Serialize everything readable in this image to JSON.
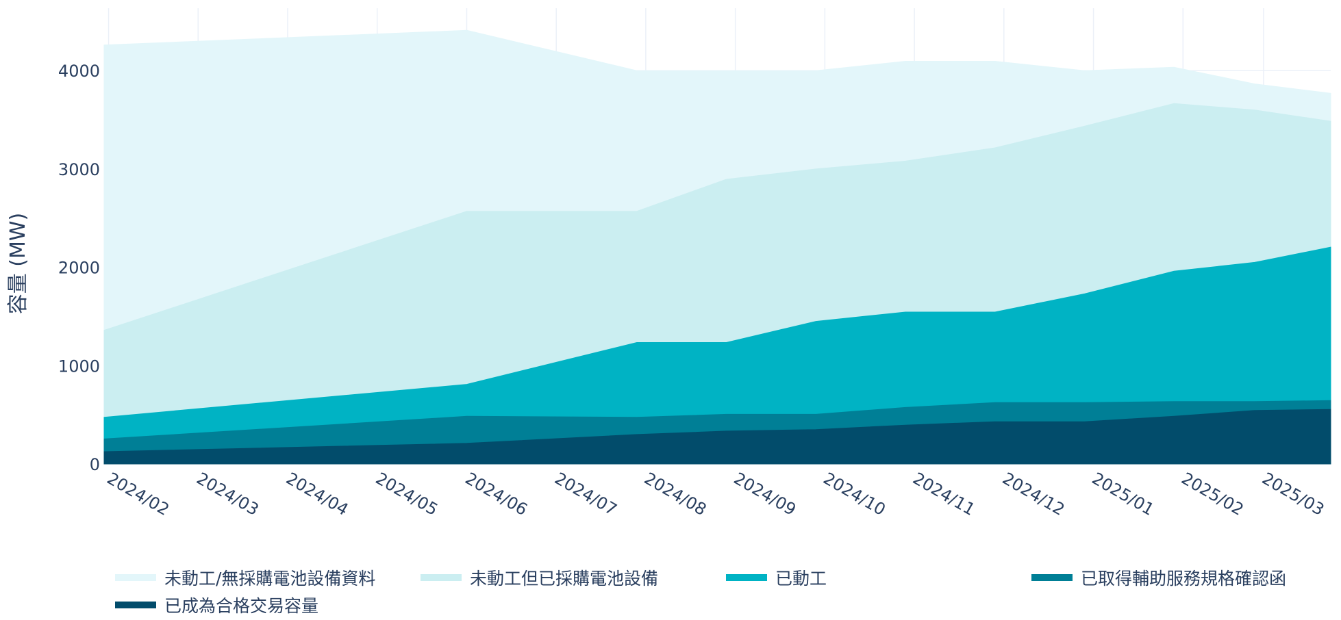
{
  "chart_data": {
    "type": "area",
    "stacked": true,
    "title": "",
    "xlabel": "",
    "ylabel": "容量 (MW)",
    "ylim": [
      0,
      4650
    ],
    "yticks": [
      0,
      1000,
      2000,
      3000,
      4000
    ],
    "grid": true,
    "legend_position": "bottom",
    "x_tick_labels": [
      "2024/02",
      "2024/03",
      "2024/04",
      "2024/05",
      "2024/06",
      "2024/07",
      "2024/08",
      "2024/09",
      "2024/10",
      "2024/11",
      "2024/12",
      "2025/01",
      "2025/02",
      "2025/03"
    ],
    "x": [
      "2024/02",
      "2024/06",
      "2024/08",
      "2024/09",
      "2024/10",
      "2024/11",
      "2024/12",
      "2025/01",
      "2025/02",
      "2025/03",
      "2025/04"
    ],
    "x_pos": [
      0,
      4.05,
      5.95,
      6.95,
      7.95,
      8.95,
      9.95,
      10.95,
      11.95,
      12.85,
      13.7
    ],
    "series": [
      {
        "name": "已成為合格交易容量",
        "color": "#024c6b",
        "values": [
          125,
          210,
          300,
          335,
          350,
          395,
          430,
          430,
          485,
          545,
          555
        ]
      },
      {
        "name": "已取得輔助服務規格確認函",
        "color": "#007f96",
        "values": [
          130,
          275,
          175,
          170,
          155,
          180,
          195,
          195,
          150,
          90,
          90
        ]
      },
      {
        "name": "已動工",
        "color": "#00b3c4",
        "values": [
          220,
          325,
          760,
          730,
          945,
          970,
          920,
          1105,
          1325,
          1415,
          1560
        ]
      },
      {
        "name": "未動工但已採購電池設備",
        "color": "#cbeef1",
        "values": [
          885,
          1760,
          1335,
          1660,
          1550,
          1535,
          1670,
          1705,
          1705,
          1550,
          1280
        ]
      },
      {
        "name": "未動工/無採購電池設備資料",
        "color": "#e3f6fa",
        "values": [
          2900,
          1840,
          1430,
          1105,
          1000,
          1015,
          880,
          565,
          370,
          265,
          285
        ]
      }
    ]
  },
  "legend": {
    "items": [
      {
        "label": "未動工/無採購電池設備資料",
        "color": "#e3f6fa"
      },
      {
        "label": "未動工但已採購電池設備",
        "color": "#cbeef1"
      },
      {
        "label": "已動工",
        "color": "#00b3c4"
      },
      {
        "label": "已取得輔助服務規格確認函",
        "color": "#007f96"
      },
      {
        "label": "已成為合格交易容量",
        "color": "#024c6b"
      }
    ]
  },
  "yaxis": {
    "title": "容量 (MW)",
    "ticks": [
      "0",
      "1000",
      "2000",
      "3000",
      "4000"
    ]
  }
}
